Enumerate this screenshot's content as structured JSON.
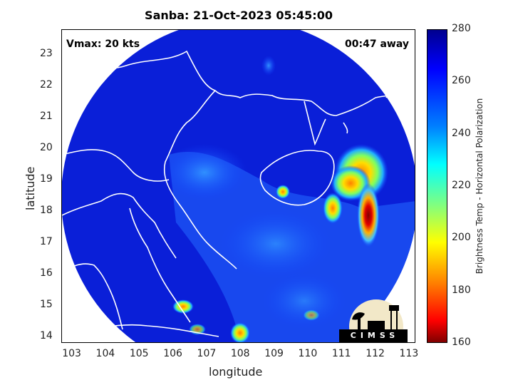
{
  "title": "Sanba: 21-Oct-2023 05:45:00",
  "annotations": {
    "vmax": "Vmax: 20 kts",
    "away": "00:47 away"
  },
  "axes": {
    "xlabel": "longitude",
    "ylabel": "latitude",
    "xticks": [
      "103",
      "104",
      "105",
      "106",
      "107",
      "108",
      "109",
      "110",
      "111",
      "112",
      "113"
    ],
    "yticks": [
      "23",
      "22",
      "21",
      "20",
      "19",
      "18",
      "17",
      "16",
      "15",
      "14"
    ],
    "xlim": [
      102.7,
      113.2
    ],
    "ylim": [
      13.8,
      23.8
    ]
  },
  "colorbar": {
    "label": "Brightness Temp - Horizontal Polarization",
    "ticks": [
      "280",
      "260",
      "240",
      "220",
      "200",
      "180",
      "160"
    ],
    "range": [
      160,
      280
    ]
  },
  "logo": {
    "text": "CIMSS"
  },
  "colors": {
    "background_cold": "#1030e0",
    "warm_core": "#ffb000",
    "hot_core": "#a00000"
  }
}
